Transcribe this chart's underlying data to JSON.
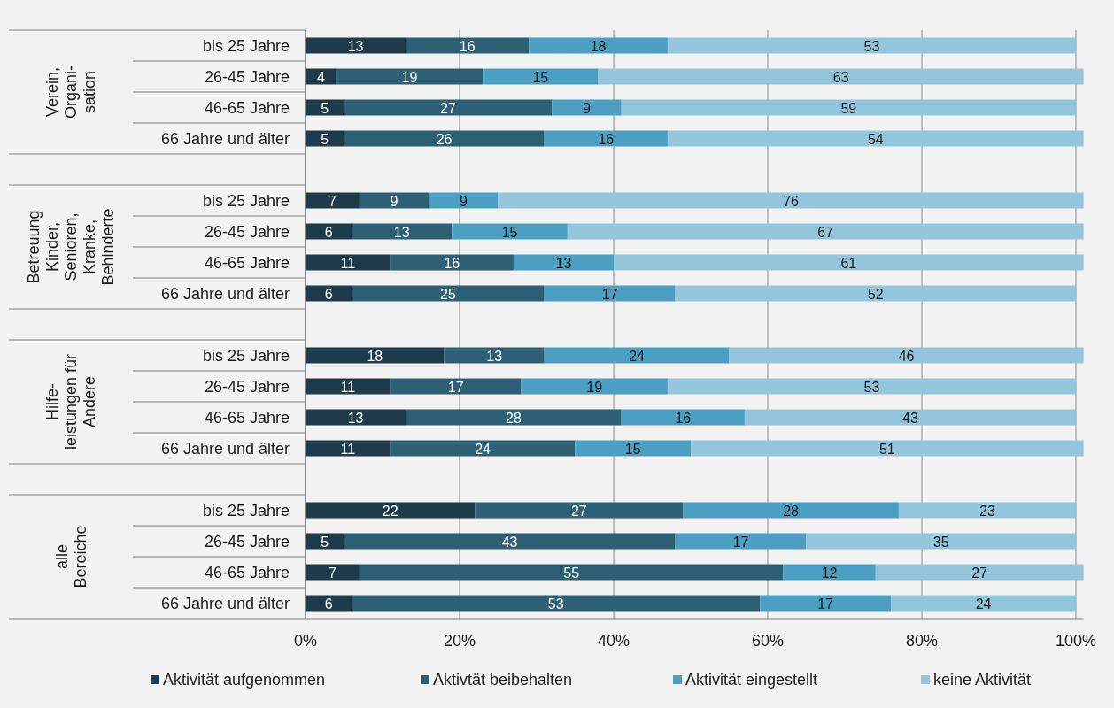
{
  "chart_data": [
    {
      "type": "bar",
      "orientation": "horizontal",
      "stacked": true,
      "title": "Verein,\nOrgani-\nsation",
      "categories": [
        "bis 25 Jahre",
        "26-45 Jahre",
        "46-65 Jahre",
        "66 Jahre und älter"
      ],
      "series": [
        {
          "color": "#1d3b4a",
          "values": [
            13,
            4,
            5,
            5
          ]
        },
        {
          "color": "#2d6075",
          "values": [
            16,
            19,
            27,
            26
          ]
        },
        {
          "color": "#4b9fc3",
          "values": [
            18,
            15,
            9,
            16
          ]
        },
        {
          "color": "#93c6dc",
          "values": [
            53,
            63,
            59,
            54
          ]
        }
      ],
      "xlim": [
        0,
        101
      ],
      "xticks": [
        0,
        20,
        40,
        60,
        80,
        100
      ],
      "grid": "x",
      "data_labels": true,
      "tick_labels": "y"
    },
    {
      "type": "bar",
      "orientation": "horizontal",
      "stacked": true,
      "title": "Betreuung\nKinder,\nSenioren,\nKranke,\nBehinderte",
      "categories": [
        "bis 25 Jahre",
        "26-45 Jahre",
        "46-65 Jahre",
        "66 Jahre und älter"
      ],
      "series": [
        {
          "color": "#1d3b4a",
          "values": [
            7,
            6,
            11,
            6
          ]
        },
        {
          "color": "#2d6075",
          "values": [
            9,
            13,
            16,
            25
          ]
        },
        {
          "color": "#4b9fc3",
          "values": [
            9,
            15,
            13,
            17
          ]
        },
        {
          "color": "#93c6dc",
          "values": [
            76,
            67,
            61,
            52
          ]
        }
      ],
      "xlim": [
        0,
        101
      ],
      "xticks": [
        0,
        20,
        40,
        60,
        80,
        100
      ],
      "grid": "x",
      "data_labels": true,
      "tick_labels": "y"
    },
    {
      "type": "bar",
      "orientation": "horizontal",
      "stacked": true,
      "title": "Hilfe-\nleistungen für\nAndere",
      "categories": [
        "bis 25 Jahre",
        "26-45 Jahre",
        "46-65 Jahre",
        "66 Jahre und älter"
      ],
      "series": [
        {
          "color": "#1d3b4a",
          "values": [
            18,
            11,
            13,
            11
          ]
        },
        {
          "color": "#2d6075",
          "values": [
            13,
            17,
            28,
            24
          ]
        },
        {
          "color": "#4b9fc3",
          "values": [
            24,
            19,
            16,
            15
          ]
        },
        {
          "color": "#93c6dc",
          "values": [
            46,
            53,
            43,
            51
          ]
        }
      ],
      "xlim": [
        0,
        101
      ],
      "xticks": [
        0,
        20,
        40,
        60,
        80,
        100
      ],
      "grid": "x",
      "data_labels": true,
      "tick_labels": "y"
    },
    {
      "type": "bar",
      "orientation": "horizontal",
      "stacked": true,
      "title": "alle\nBereiche",
      "categories": [
        "bis 25 Jahre",
        "26-45 Jahre",
        "46-65 Jahre",
        "66 Jahre und älter"
      ],
      "series": [
        {
          "name": "Aktivität aufgenommen",
          "color": "#1d3b4a",
          "values": [
            22,
            5,
            7,
            6
          ]
        },
        {
          "name": "Aktivtät beibehalten",
          "color": "#2d6075",
          "values": [
            27,
            43,
            55,
            53
          ]
        },
        {
          "name": "Aktivität eingestellt",
          "color": "#4b9fc3",
          "values": [
            28,
            17,
            12,
            17
          ]
        },
        {
          "name": "keine Aktivität",
          "color": "#93c6dc",
          "values": [
            23,
            35,
            27,
            24
          ]
        }
      ],
      "xlim": [
        0,
        101
      ],
      "xticks": [
        {
          "value": 0,
          "label": "0%"
        },
        {
          "value": 20,
          "label": "20%"
        },
        {
          "value": 40,
          "label": "40%"
        },
        {
          "value": 60,
          "label": "60%"
        },
        {
          "value": 80,
          "label": "80%"
        },
        {
          "value": 100,
          "label": "100%"
        }
      ],
      "grid": "x",
      "data_labels": true,
      "legend": "bottom"
    }
  ]
}
